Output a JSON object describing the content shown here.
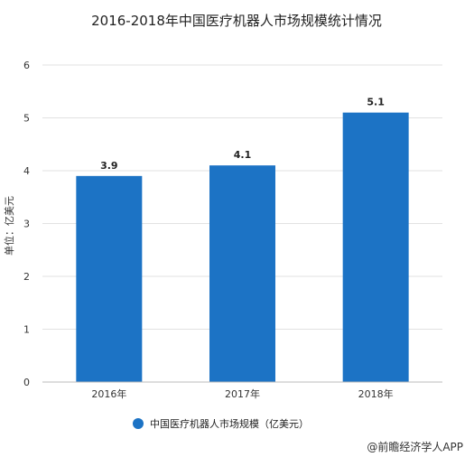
{
  "chart_data": {
    "type": "bar",
    "title": "2016-2018年中国医疗机器人市场规模统计情况",
    "ylabel": "单位：亿美元",
    "xlabel": "",
    "categories": [
      "2016年",
      "2017年",
      "2018年"
    ],
    "series": [
      {
        "name": "中国医疗机器人市场规模（亿美元）",
        "values": [
          3.9,
          4.1,
          5.1
        ],
        "color": "#1c73c5"
      }
    ],
    "data_labels": [
      "3.9",
      "4.1",
      "5.1"
    ],
    "ylim": [
      0,
      6
    ],
    "yticks": [
      "0",
      "1",
      "2",
      "3",
      "4",
      "5",
      "6"
    ],
    "grid": true,
    "legend_position": "bottom-center"
  },
  "watermark": {
    "text": "@前瞻经济学人APP"
  }
}
